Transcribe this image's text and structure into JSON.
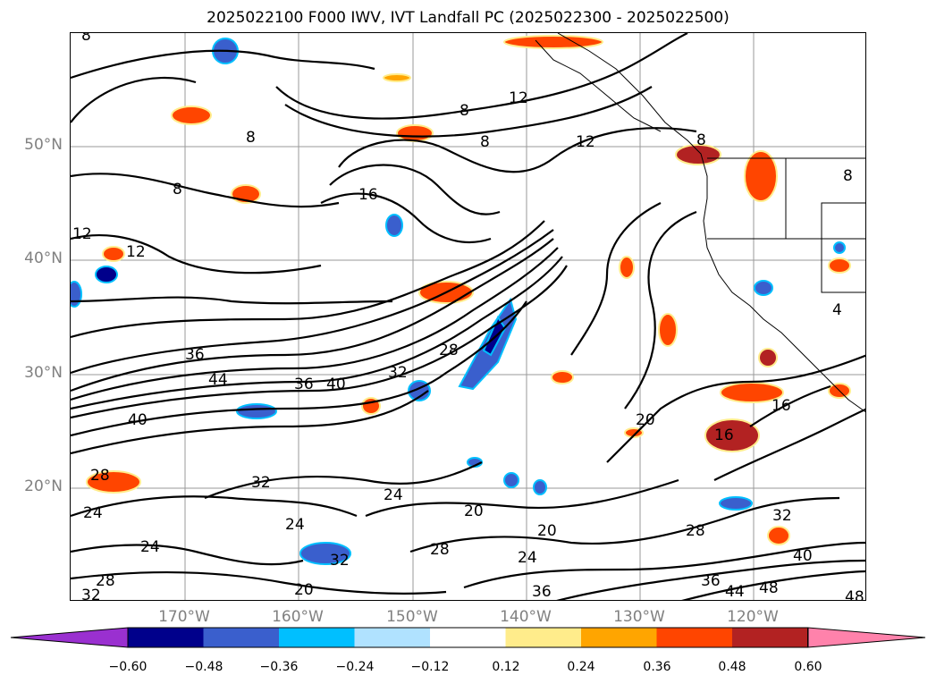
{
  "title": "2025022100 F000 IWV, IVT Landfall PC (2025022300 - 2025022500)",
  "lat_labels": [
    "50°N",
    "40°N",
    "30°N",
    "20°N"
  ],
  "lon_labels": [
    "170°W",
    "160°W",
    "150°W",
    "140°W",
    "130°W",
    "120°W"
  ],
  "colorbar": {
    "ticks": [
      "−0.60",
      "−0.48",
      "−0.36",
      "−0.24",
      "−0.12",
      "0.12",
      "0.24",
      "0.36",
      "0.48",
      "0.60"
    ],
    "colors": [
      "#9a30d0",
      "#00008b",
      "#3a5fcd",
      "#00bfff",
      "#b0e2ff",
      "#ffffff",
      "#ffec8b",
      "#ffa500",
      "#ff4500",
      "#b22222",
      "#ff82ab"
    ]
  },
  "contour_labels": [
    "8",
    "8",
    "12",
    "12",
    "8",
    "8",
    "8",
    "16",
    "12",
    "12",
    "36",
    "36",
    "44",
    "40",
    "40",
    "32",
    "28",
    "20",
    "16",
    "28",
    "32",
    "24",
    "24",
    "24",
    "20",
    "28",
    "24",
    "20",
    "32",
    "36",
    "28",
    "32",
    "36",
    "44",
    "48",
    "48",
    "40",
    "24",
    "28",
    "32",
    "20",
    "4",
    "8",
    "8",
    "16"
  ]
}
